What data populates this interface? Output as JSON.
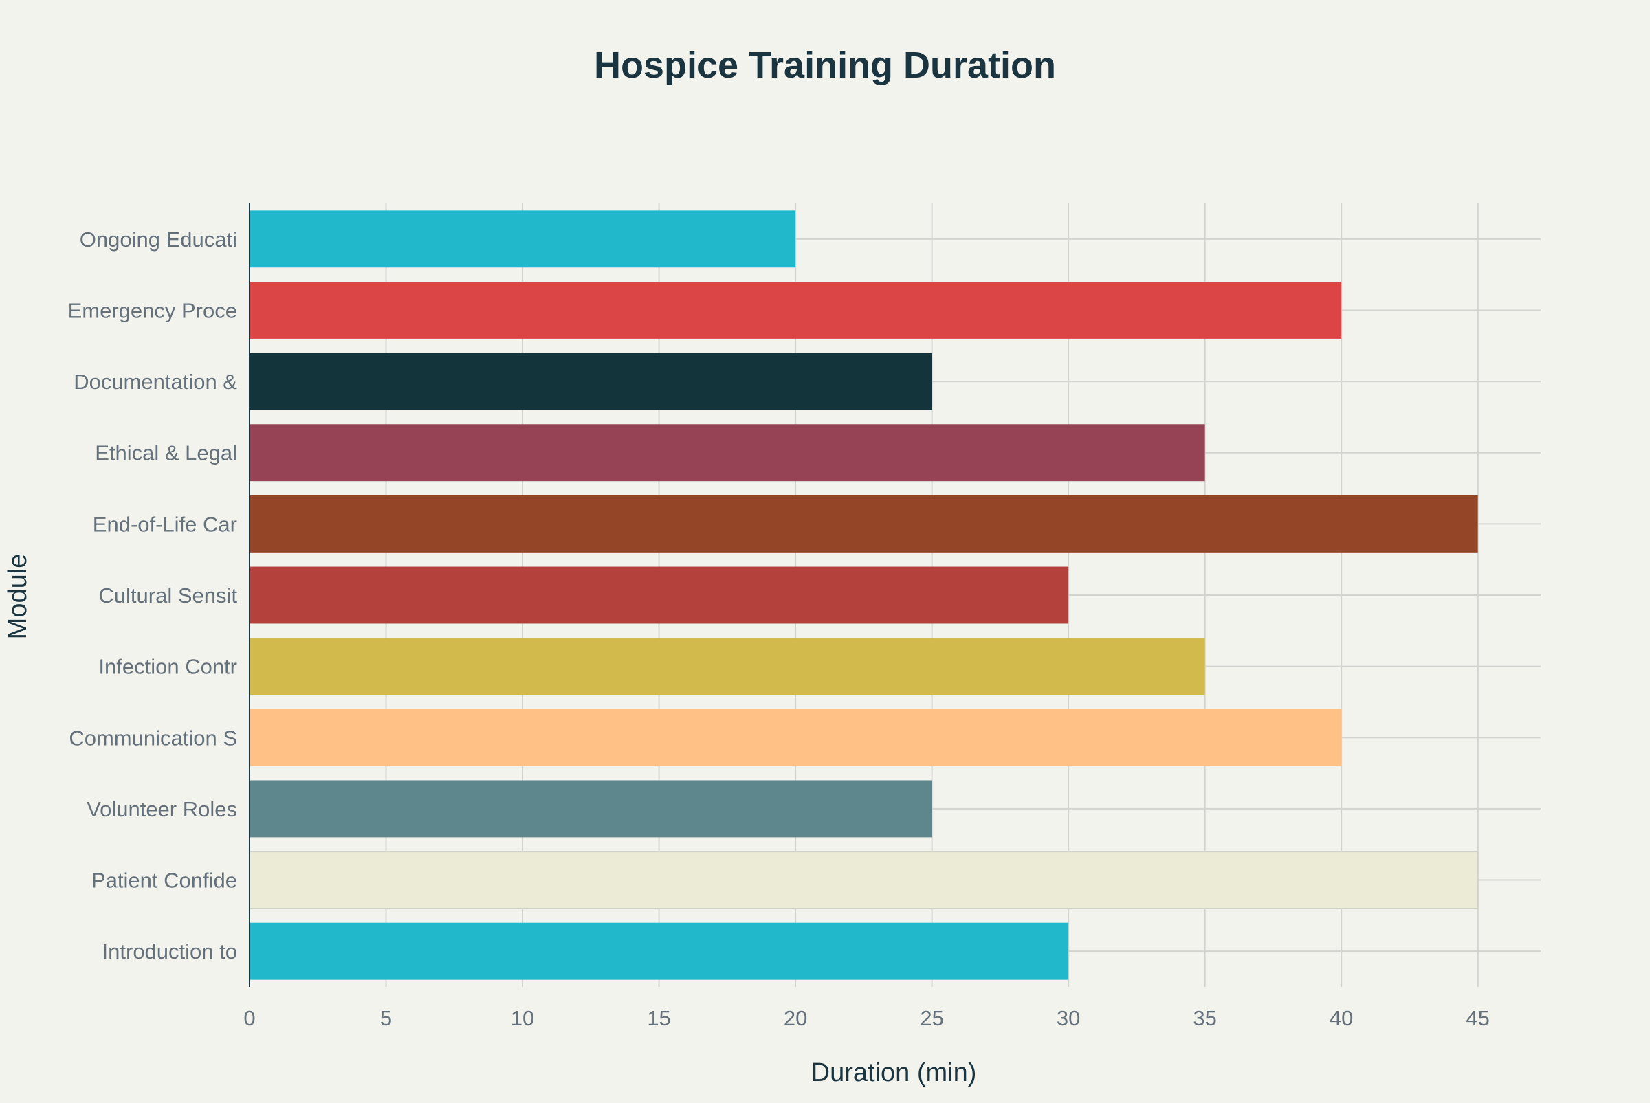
{
  "chart_data": {
    "type": "bar",
    "orientation": "horizontal",
    "title": "Hospice Training Duration",
    "xlabel": "Duration (min)",
    "ylabel": "Module",
    "xlim": [
      0,
      47.3
    ],
    "xticks": [
      0,
      5,
      10,
      15,
      20,
      25,
      30,
      35,
      40,
      45
    ],
    "grid": true,
    "legend": "none",
    "categories": [
      "Introduction to",
      "Patient Confide",
      "Volunteer Roles",
      "Communication S",
      "Infection Contr",
      "Cultural Sensit",
      "End-of-Life Car",
      "Ethical & Legal",
      "Documentation &",
      "Emergency Proce",
      "Ongoing Educati"
    ],
    "values": [
      30,
      45,
      25,
      40,
      35,
      30,
      45,
      35,
      25,
      40,
      20
    ],
    "colors": [
      "#21b8cc",
      "#ebebd6",
      "#5e878d",
      "#ffc185",
      "#d2ba4c",
      "#b4413c",
      "#944427",
      "#964455",
      "#13343b",
      "#db4545",
      "#21b8cc"
    ]
  },
  "theme": {
    "background": "#f3f3ee",
    "title_color": "#1a3540",
    "axis_label_color": "#1a3540",
    "tick_color": "#64707a",
    "grid_color": "#d2d3cf",
    "axis_line_color": "#1a3540",
    "bar_outline": "#cfd0c8"
  }
}
